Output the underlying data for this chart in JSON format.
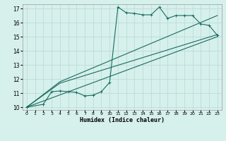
{
  "xlabel": "Humidex (Indice chaleur)",
  "background_color": "#d6f0ec",
  "grid_color": "#b8d8d4",
  "line_color": "#1a6b60",
  "xlim": [
    -0.5,
    23.5
  ],
  "ylim": [
    9.8,
    17.3
  ],
  "xticks": [
    0,
    1,
    2,
    3,
    4,
    5,
    6,
    7,
    8,
    9,
    10,
    11,
    12,
    13,
    14,
    15,
    16,
    17,
    18,
    19,
    20,
    21,
    22,
    23
  ],
  "yticks": [
    10,
    11,
    12,
    13,
    14,
    15,
    16,
    17
  ],
  "line1_x": [
    0,
    2,
    3,
    4,
    5,
    6,
    7,
    8,
    9,
    10,
    11,
    12,
    13,
    14,
    15,
    16,
    17,
    18,
    19,
    20,
    21,
    22,
    23
  ],
  "line1_y": [
    10.0,
    10.2,
    11.1,
    11.15,
    11.1,
    11.05,
    10.8,
    10.85,
    11.1,
    11.75,
    17.1,
    16.7,
    16.65,
    16.55,
    16.55,
    17.1,
    16.3,
    16.5,
    16.5,
    16.5,
    15.9,
    15.8,
    15.1
  ],
  "line2_x": [
    0,
    4,
    23
  ],
  "line2_y": [
    10.0,
    11.8,
    16.5
  ],
  "line3_x": [
    0,
    4,
    23
  ],
  "line3_y": [
    10.0,
    11.7,
    15.15
  ],
  "line4_x": [
    0,
    23
  ],
  "line4_y": [
    10.0,
    15.0
  ]
}
